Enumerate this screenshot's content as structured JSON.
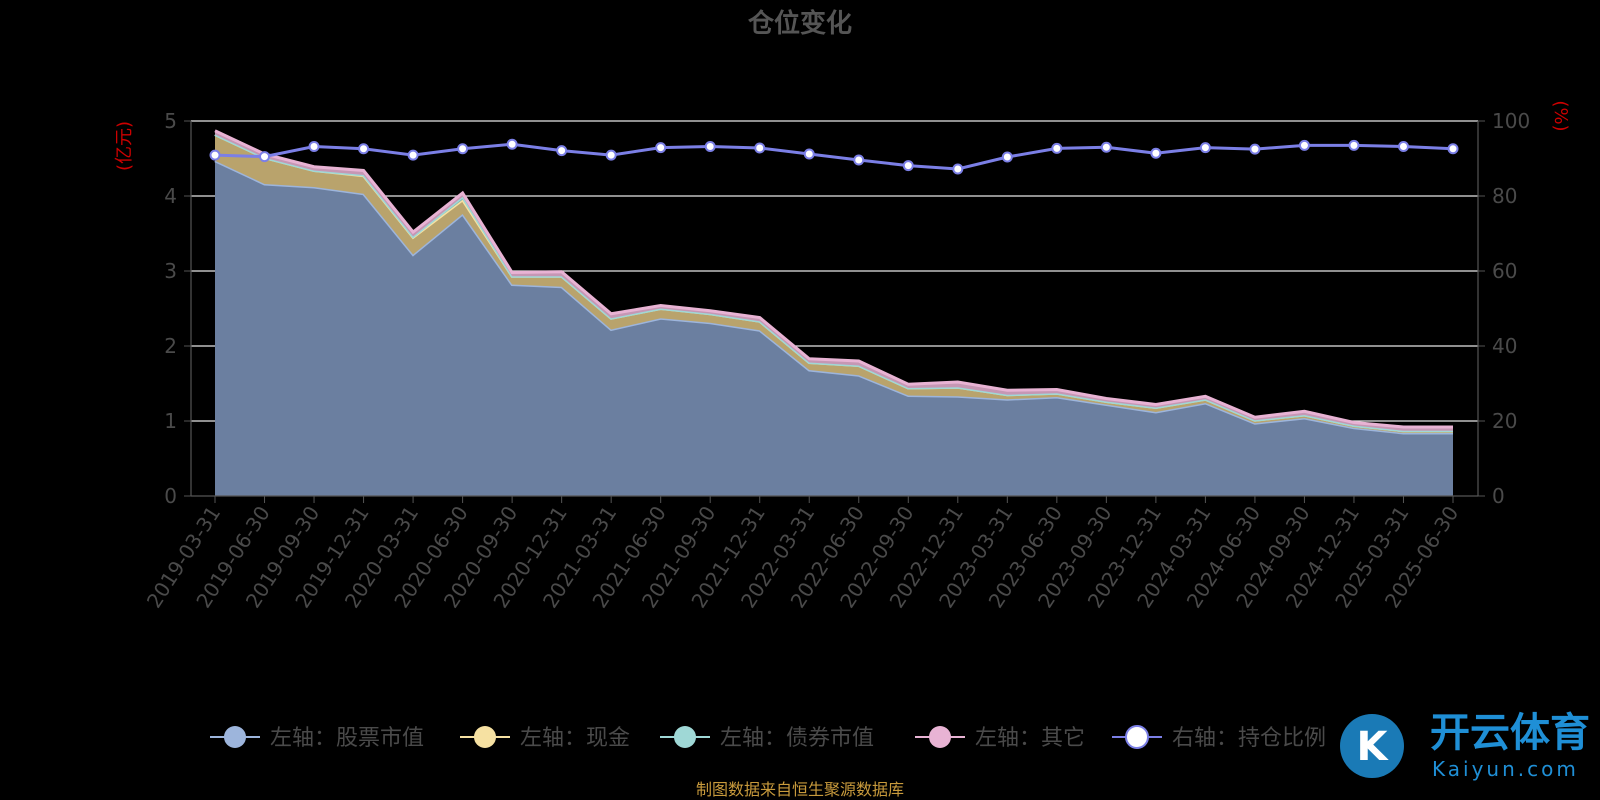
{
  "chart_data": {
    "type": "area",
    "title": "仓位变化",
    "x": [
      "2019-03-31",
      "2019-06-30",
      "2019-09-30",
      "2019-12-31",
      "2020-03-31",
      "2020-06-30",
      "2020-09-30",
      "2020-12-31",
      "2021-03-31",
      "2021-06-30",
      "2021-09-30",
      "2021-12-31",
      "2022-03-31",
      "2022-06-30",
      "2022-09-30",
      "2022-12-31",
      "2023-03-31",
      "2023-06-30",
      "2023-09-30",
      "2023-12-31",
      "2024-03-31",
      "2024-06-30",
      "2024-09-30",
      "2024-12-31",
      "2025-03-31",
      "2025-06-30"
    ],
    "y_left": {
      "unit": "(亿元)",
      "range": [
        0,
        5
      ],
      "ticks": [
        0,
        1,
        2,
        3,
        4,
        5
      ]
    },
    "y_right": {
      "unit": "(%)",
      "range": [
        0,
        100
      ],
      "ticks": [
        0,
        20,
        40,
        60,
        80,
        100
      ]
    },
    "stacked": true,
    "series": [
      {
        "name": "左轴：股票市值",
        "axis": "left",
        "color": "#9db5dc",
        "values": [
          4.47,
          4.16,
          4.12,
          4.03,
          3.22,
          3.76,
          2.82,
          2.79,
          2.22,
          2.37,
          2.31,
          2.21,
          1.68,
          1.61,
          1.34,
          1.33,
          1.29,
          1.32,
          1.22,
          1.12,
          1.24,
          0.97,
          1.04,
          0.91,
          0.84,
          0.84
        ]
      },
      {
        "name": "左轴：现金",
        "axis": "left",
        "color": "#f6e1a2",
        "values": [
          0.35,
          0.35,
          0.22,
          0.24,
          0.23,
          0.19,
          0.11,
          0.14,
          0.15,
          0.13,
          0.12,
          0.12,
          0.1,
          0.13,
          0.1,
          0.12,
          0.06,
          0.05,
          0.04,
          0.06,
          0.05,
          0.04,
          0.04,
          0.03,
          0.03,
          0.03
        ]
      },
      {
        "name": "左轴：债券市值",
        "axis": "left",
        "color": "#9fd8d6",
        "values": [
          0.0,
          0.0,
          0.0,
          0.01,
          0.01,
          0.04,
          0.0,
          0.0,
          0.0,
          0.0,
          0.0,
          0.0,
          0.0,
          0.0,
          0.0,
          0.0,
          0.0,
          0.0,
          0.0,
          0.0,
          0.0,
          0.0,
          0.0,
          0.0,
          0.0,
          0.0
        ]
      },
      {
        "name": "左轴：其它",
        "axis": "left",
        "color": "#e8b3d4",
        "values": [
          0.05,
          0.05,
          0.05,
          0.06,
          0.06,
          0.05,
          0.05,
          0.06,
          0.06,
          0.04,
          0.04,
          0.05,
          0.05,
          0.06,
          0.05,
          0.07,
          0.06,
          0.05,
          0.04,
          0.04,
          0.04,
          0.04,
          0.05,
          0.04,
          0.05,
          0.05
        ]
      },
      {
        "name": "右轴：持仓比例",
        "axis": "right",
        "color": "#7b7fe6",
        "values": [
          90.9,
          90.5,
          93.2,
          92.6,
          90.9,
          92.6,
          93.8,
          92.1,
          90.9,
          92.9,
          93.2,
          92.8,
          91.2,
          89.6,
          88.1,
          87.2,
          90.4,
          92.7,
          93.0,
          91.4,
          92.9,
          92.5,
          93.5,
          93.5,
          93.2,
          92.6
        ]
      }
    ],
    "legend_position": "bottom",
    "grid": true
  },
  "footer": {
    "source": "制图数据来自恒生聚源数据库"
  },
  "watermark": {
    "brand": "开云体育",
    "sub": "Kaiyun.com",
    "logo": "K"
  }
}
